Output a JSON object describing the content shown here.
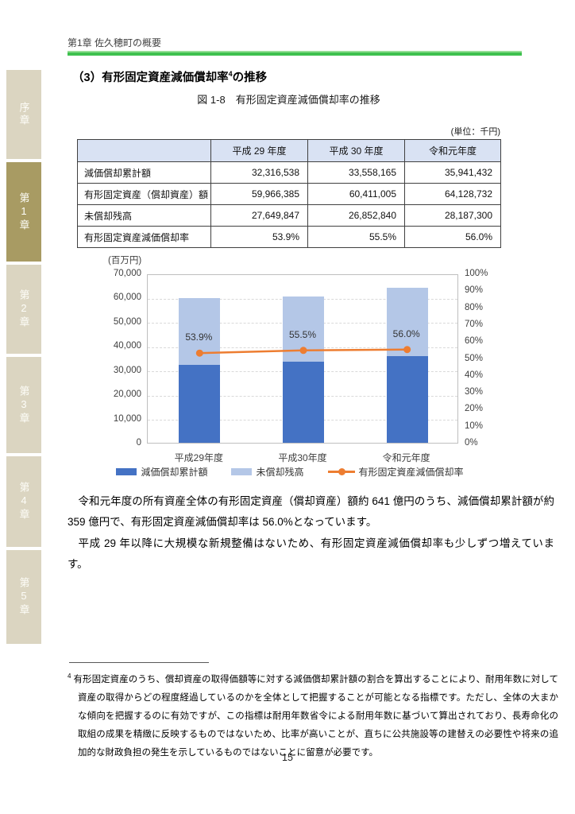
{
  "page": {
    "header": "第1章 佐久穂町の概要",
    "page_number": "15"
  },
  "sidebar": {
    "items": [
      {
        "label": "序章",
        "active": false
      },
      {
        "label": "第1章",
        "active": true
      },
      {
        "label": "第2章",
        "active": false
      },
      {
        "label": "第3章",
        "active": false
      },
      {
        "label": "第4章",
        "active": false
      },
      {
        "label": "第5章",
        "active": false
      }
    ]
  },
  "section": {
    "title_prefix": "（3）有形固定資産減価償却率",
    "title_footnote_ref": "4",
    "title_suffix": "の推移",
    "figure_caption": "図 1-8　有形固定資産減価償却率の推移",
    "unit_label": "(単位：千円)"
  },
  "table": {
    "columns": [
      "",
      "平成 29 年度",
      "平成 30 年度",
      "令和元年度"
    ],
    "rows": [
      {
        "label": "減価償却累計額",
        "values": [
          "32,316,538",
          "33,558,165",
          "35,941,432"
        ]
      },
      {
        "label": "有形固定資産（償却資産）額",
        "values": [
          "59,966,385",
          "60,411,005",
          "64,128,732"
        ]
      },
      {
        "label": "未償却残高",
        "values": [
          "27,649,847",
          "26,852,840",
          "28,187,300"
        ]
      },
      {
        "label": "有形固定資産減価償却率",
        "values": [
          "53.9%",
          "55.5%",
          "56.0%"
        ]
      }
    ]
  },
  "chart_data": {
    "type": "bar",
    "subtype": "stacked-bar-with-line",
    "title": "有形固定資産減価償却率の推移",
    "categories": [
      "平成29年度",
      "平成30年度",
      "令和元年度"
    ],
    "series": [
      {
        "name": "減価償却累計額",
        "type": "bar",
        "color": "#4472c4",
        "values": [
          32317,
          33558,
          35941
        ],
        "unit": "百万円"
      },
      {
        "name": "未償却残高",
        "type": "bar",
        "color": "#b4c7e7",
        "values": [
          27650,
          26853,
          28187
        ],
        "unit": "百万円"
      },
      {
        "name": "有形固定資産減価償却率",
        "type": "line",
        "color": "#ed7d31",
        "values": [
          53.9,
          55.5,
          56.0
        ],
        "unit": "%",
        "point_labels": [
          "53.9%",
          "55.5%",
          "56.0%"
        ]
      }
    ],
    "left_axis": {
      "title": "(百万円)",
      "min": 0,
      "max": 70000,
      "step": 10000,
      "ticks": [
        "70,000",
        "60,000",
        "50,000",
        "40,000",
        "30,000",
        "20,000",
        "10,000",
        "0"
      ]
    },
    "right_axis": {
      "min": 0,
      "max": 100,
      "step": 10,
      "ticks": [
        "100%",
        "90%",
        "80%",
        "70%",
        "60%",
        "50%",
        "40%",
        "30%",
        "20%",
        "10%",
        "0%"
      ]
    },
    "grid": "dashed-horizontal",
    "legend_position": "bottom"
  },
  "body": {
    "paragraphs": [
      "令和元年度の所有資産全体の有形固定資産（償却資産）額約 641 億円のうち、減価償却累計額が約 359 億円で、有形固定資産減価償却率は 56.0%となっています。",
      "平成 29 年以降に大規模な新規整備はないため、有形固定資産減価償却率も少しずつ増えています。"
    ]
  },
  "footnote": {
    "ref": "4",
    "text": "有形固定資産のうち、償却資産の取得価額等に対する減価償却累計額の割合を算出することにより、耐用年数に対して資産の取得からどの程度経過しているのかを全体として把握することが可能となる指標です。ただし、全体の大まかな傾向を把握するのに有効ですが、この指標は耐用年数省令による耐用年数に基づいて算出されており、長寿命化の取組の成果を精緻に反映するものではないため、比率が高いことが、直ちに公共施設等の建替えの必要性や将来の追加的な財政負担の発生を示しているものではないことに留意が必要です。"
  }
}
